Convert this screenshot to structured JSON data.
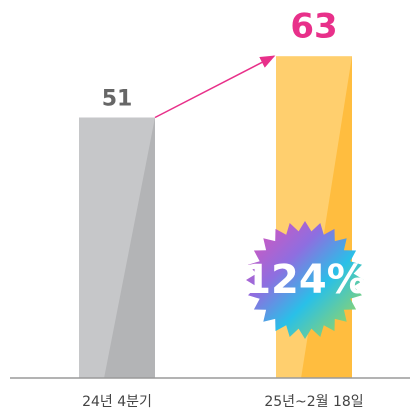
{
  "chart_data": {
    "type": "bar",
    "categories": [
      "24년 4분기",
      "25년~2월 18일"
    ],
    "values": [
      51,
      63
    ],
    "colors": [
      "#c6c7c9",
      "#ffcf6e"
    ],
    "shade_colors": [
      "#b3b4b6",
      "#ffbd3f"
    ],
    "value_label_colors": [
      "#666666",
      "#e8308a"
    ],
    "ylim": [
      0,
      74
    ],
    "annotation": "124%"
  }
}
